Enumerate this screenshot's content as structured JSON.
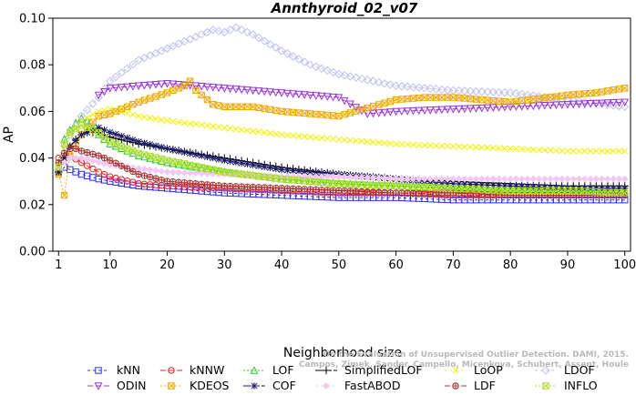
{
  "chart_data": {
    "type": "line",
    "title": "Annthyroid_02_v07",
    "xlabel": "Neighborhood size",
    "ylabel": "AP",
    "xlim": [
      0,
      101
    ],
    "ylim": [
      0.0,
      0.1
    ],
    "xticks": [
      1,
      10,
      20,
      30,
      40,
      50,
      60,
      70,
      80,
      90,
      100
    ],
    "yticks": [
      "0.00",
      "0.02",
      "0.04",
      "0.06",
      "0.08",
      "0.10"
    ],
    "grid": false,
    "legend_position": "bottom",
    "watermark": [
      "On the Evaluation of Unsupervised Outlier Detection. DAMI, 2015.",
      "Campos, Zimek, Sander, Campello, Micenkova, Schubert, Assent, Houle"
    ],
    "series": [
      {
        "name": "kNN",
        "color": "#2a2aff",
        "marker": "square",
        "dash": "3,3",
        "points": [
          [
            1,
            0.034
          ],
          [
            2,
            0.036
          ],
          [
            3,
            0.035
          ],
          [
            5,
            0.033
          ],
          [
            8,
            0.031
          ],
          [
            10,
            0.03
          ],
          [
            15,
            0.028
          ],
          [
            20,
            0.027
          ],
          [
            30,
            0.025
          ],
          [
            40,
            0.024
          ],
          [
            50,
            0.023
          ],
          [
            60,
            0.023
          ],
          [
            70,
            0.022
          ],
          [
            80,
            0.022
          ],
          [
            90,
            0.022
          ],
          [
            100,
            0.022
          ]
        ]
      },
      {
        "name": "kNNW",
        "color": "#ee2222",
        "marker": "circle",
        "dash": "6,3",
        "points": [
          [
            1,
            0.04
          ],
          [
            2,
            0.042
          ],
          [
            3,
            0.041
          ],
          [
            5,
            0.038
          ],
          [
            8,
            0.034
          ],
          [
            10,
            0.032
          ],
          [
            15,
            0.029
          ],
          [
            20,
            0.028
          ],
          [
            30,
            0.027
          ],
          [
            40,
            0.026
          ],
          [
            50,
            0.025
          ],
          [
            60,
            0.025
          ],
          [
            70,
            0.024
          ],
          [
            80,
            0.024
          ],
          [
            90,
            0.024
          ],
          [
            100,
            0.024
          ]
        ]
      },
      {
        "name": "LOF",
        "color": "#22cc22",
        "marker": "triangle-up",
        "dash": "2,2",
        "points": [
          [
            1,
            0.035
          ],
          [
            2,
            0.048
          ],
          [
            3,
            0.052
          ],
          [
            4,
            0.055
          ],
          [
            5,
            0.057
          ],
          [
            6,
            0.056
          ],
          [
            8,
            0.05
          ],
          [
            10,
            0.046
          ],
          [
            15,
            0.041
          ],
          [
            20,
            0.038
          ],
          [
            30,
            0.034
          ],
          [
            40,
            0.031
          ],
          [
            50,
            0.029
          ],
          [
            60,
            0.028
          ],
          [
            70,
            0.027
          ],
          [
            80,
            0.026
          ],
          [
            90,
            0.026
          ],
          [
            100,
            0.025
          ]
        ]
      },
      {
        "name": "SimplifiedLOF",
        "color": "#000000",
        "marker": "plus",
        "dash": "8,2",
        "points": [
          [
            1,
            0.034
          ],
          [
            2,
            0.04
          ],
          [
            3,
            0.045
          ],
          [
            4,
            0.048
          ],
          [
            5,
            0.05
          ],
          [
            6,
            0.051
          ],
          [
            8,
            0.051
          ],
          [
            10,
            0.049
          ],
          [
            15,
            0.046
          ],
          [
            20,
            0.044
          ],
          [
            30,
            0.04
          ],
          [
            40,
            0.036
          ],
          [
            50,
            0.033
          ],
          [
            60,
            0.031
          ],
          [
            70,
            0.03
          ],
          [
            80,
            0.029
          ],
          [
            90,
            0.028
          ],
          [
            100,
            0.028
          ]
        ]
      },
      {
        "name": "LoOP",
        "color": "#f2f200",
        "marker": "x",
        "dash": "2,4",
        "points": [
          [
            1,
            0.037
          ],
          [
            2,
            0.044
          ],
          [
            3,
            0.05
          ],
          [
            5,
            0.056
          ],
          [
            8,
            0.06
          ],
          [
            10,
            0.061
          ],
          [
            15,
            0.058
          ],
          [
            20,
            0.056
          ],
          [
            30,
            0.053
          ],
          [
            40,
            0.05
          ],
          [
            50,
            0.048
          ],
          [
            60,
            0.046
          ],
          [
            70,
            0.045
          ],
          [
            80,
            0.044
          ],
          [
            90,
            0.043
          ],
          [
            100,
            0.043
          ]
        ]
      },
      {
        "name": "LDOF",
        "color": "#c0c0f2",
        "marker": "diamond",
        "dash": "3,3",
        "points": [
          [
            1,
            0.035
          ],
          [
            3,
            0.05
          ],
          [
            5,
            0.058
          ],
          [
            8,
            0.066
          ],
          [
            10,
            0.073
          ],
          [
            15,
            0.082
          ],
          [
            20,
            0.087
          ],
          [
            25,
            0.092
          ],
          [
            28,
            0.095
          ],
          [
            30,
            0.094
          ],
          [
            32,
            0.096
          ],
          [
            35,
            0.093
          ],
          [
            40,
            0.086
          ],
          [
            45,
            0.08
          ],
          [
            50,
            0.076
          ],
          [
            60,
            0.071
          ],
          [
            70,
            0.069
          ],
          [
            80,
            0.068
          ],
          [
            90,
            0.065
          ],
          [
            100,
            0.062
          ]
        ]
      },
      {
        "name": "ODIN",
        "color": "#9933dd",
        "marker": "triangle-down",
        "dash": "6,3",
        "points": [
          [
            8,
            0.067
          ],
          [
            10,
            0.07
          ],
          [
            15,
            0.071
          ],
          [
            20,
            0.072
          ],
          [
            25,
            0.071
          ],
          [
            30,
            0.07
          ],
          [
            40,
            0.068
          ],
          [
            50,
            0.066
          ],
          [
            55,
            0.059
          ],
          [
            60,
            0.06
          ],
          [
            70,
            0.061
          ],
          [
            80,
            0.062
          ],
          [
            90,
            0.063
          ],
          [
            100,
            0.064
          ]
        ]
      },
      {
        "name": "KDEOS",
        "color": "#f2a800",
        "marker": "square-x",
        "dash": "2,2",
        "points": [
          [
            1,
            0.033
          ],
          [
            2,
            0.024
          ],
          [
            3,
            0.041
          ],
          [
            5,
            0.05
          ],
          [
            8,
            0.058
          ],
          [
            10,
            0.059
          ],
          [
            15,
            0.064
          ],
          [
            20,
            0.068
          ],
          [
            23,
            0.071
          ],
          [
            24,
            0.073
          ],
          [
            25,
            0.069
          ],
          [
            28,
            0.063
          ],
          [
            30,
            0.062
          ],
          [
            35,
            0.062
          ],
          [
            40,
            0.06
          ],
          [
            50,
            0.058
          ],
          [
            60,
            0.065
          ],
          [
            65,
            0.066
          ],
          [
            70,
            0.066
          ],
          [
            80,
            0.064
          ],
          [
            90,
            0.067
          ],
          [
            95,
            0.068
          ],
          [
            100,
            0.07
          ]
        ]
      },
      {
        "name": "COF",
        "color": "#1a1a66",
        "marker": "star",
        "dash": "8,2",
        "points": [
          [
            1,
            0.034
          ],
          [
            2,
            0.04
          ],
          [
            3,
            0.045
          ],
          [
            5,
            0.05
          ],
          [
            8,
            0.053
          ],
          [
            10,
            0.051
          ],
          [
            15,
            0.047
          ],
          [
            20,
            0.044
          ],
          [
            30,
            0.039
          ],
          [
            40,
            0.035
          ],
          [
            50,
            0.033
          ],
          [
            60,
            0.031
          ],
          [
            70,
            0.029
          ],
          [
            80,
            0.028
          ],
          [
            90,
            0.027
          ],
          [
            100,
            0.027
          ]
        ]
      },
      {
        "name": "FastABOD",
        "color": "#f2c8f2",
        "marker": "diamond-filled",
        "dash": "3,3",
        "points": [
          [
            1,
            0.036
          ],
          [
            3,
            0.04
          ],
          [
            5,
            0.04
          ],
          [
            10,
            0.037
          ],
          [
            20,
            0.034
          ],
          [
            30,
            0.033
          ],
          [
            40,
            0.032
          ],
          [
            50,
            0.032
          ],
          [
            60,
            0.031
          ],
          [
            70,
            0.031
          ],
          [
            80,
            0.031
          ],
          [
            90,
            0.031
          ],
          [
            100,
            0.031
          ]
        ]
      },
      {
        "name": "LDF",
        "color": "#aa3333",
        "marker": "circle-plus",
        "dash": "6,3",
        "points": [
          [
            1,
            0.038
          ],
          [
            2,
            0.042
          ],
          [
            3,
            0.044
          ],
          [
            4,
            0.044
          ],
          [
            5,
            0.043
          ],
          [
            8,
            0.041
          ],
          [
            10,
            0.039
          ],
          [
            15,
            0.033
          ],
          [
            20,
            0.03
          ],
          [
            30,
            0.028
          ],
          [
            40,
            0.027
          ],
          [
            50,
            0.026
          ],
          [
            60,
            0.025
          ],
          [
            70,
            0.025
          ],
          [
            80,
            0.024
          ],
          [
            90,
            0.024
          ],
          [
            100,
            0.024
          ]
        ]
      },
      {
        "name": "INFLO",
        "color": "#aadd22",
        "marker": "hourglass",
        "dash": "2,2",
        "points": [
          [
            1,
            0.036
          ],
          [
            2,
            0.046
          ],
          [
            3,
            0.051
          ],
          [
            5,
            0.054
          ],
          [
            8,
            0.051
          ],
          [
            10,
            0.047
          ],
          [
            15,
            0.042
          ],
          [
            20,
            0.039
          ],
          [
            30,
            0.034
          ],
          [
            40,
            0.031
          ],
          [
            50,
            0.029
          ],
          [
            60,
            0.028
          ],
          [
            70,
            0.027
          ],
          [
            80,
            0.026
          ],
          [
            90,
            0.026
          ],
          [
            100,
            0.025
          ]
        ]
      }
    ],
    "legend_rows": [
      [
        "kNN",
        "kNNW",
        "LOF",
        "SimplifiedLOF",
        "LoOP",
        "LDOF"
      ],
      [
        "ODIN",
        "KDEOS",
        "COF",
        "FastABOD",
        "LDF",
        "INFLO"
      ]
    ]
  }
}
